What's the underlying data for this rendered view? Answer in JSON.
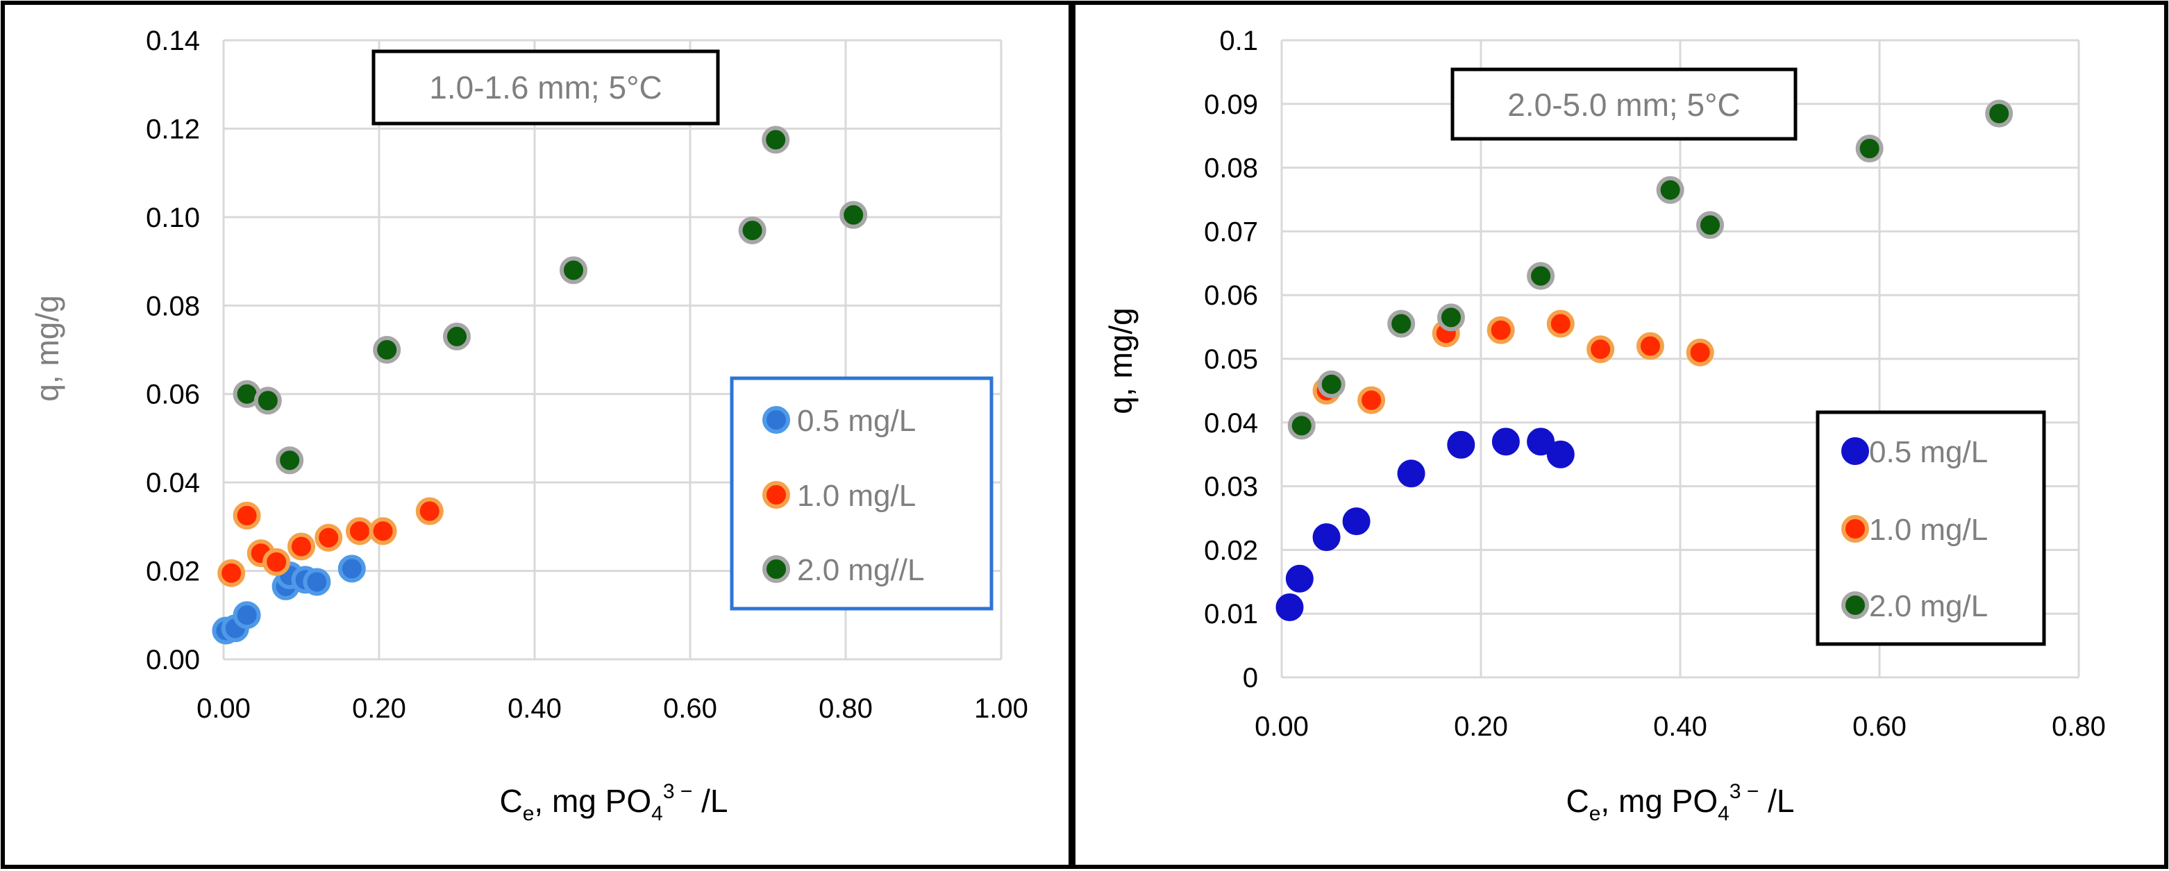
{
  "chart_data": [
    {
      "type": "scatter",
      "annotation": "1.0-1.6 mm; 5°C",
      "xlabel": {
        "main": "C",
        "sub": "e",
        "rest1": ", mg PO",
        "sub2": "4",
        "sup": "3 −",
        "rest2": " /L"
      },
      "ylabel": "q, mg/g",
      "xlim": [
        0,
        1.0
      ],
      "ylim": [
        0,
        0.14
      ],
      "xticks": [
        "0.00",
        "0.20",
        "0.40",
        "0.60",
        "0.80",
        "1.00"
      ],
      "yticks": [
        "0.00",
        "0.02",
        "0.04",
        "0.06",
        "0.08",
        "0.10",
        "0.12",
        "0.14"
      ],
      "grid": true,
      "legend_position": "right",
      "series": [
        {
          "name": "0.5 mg/L",
          "color": "#2e75d6",
          "edge": "#4f9ae8",
          "x": [
            0.003,
            0.015,
            0.03,
            0.08,
            0.085,
            0.105,
            0.12,
            0.165
          ],
          "y": [
            0.0065,
            0.007,
            0.01,
            0.0165,
            0.019,
            0.018,
            0.0175,
            0.0205
          ]
        },
        {
          "name": "1.0 mg/L",
          "color": "#ff2a00",
          "edge": "#f5a24b",
          "x": [
            0.01,
            0.03,
            0.048,
            0.068,
            0.1,
            0.135,
            0.175,
            0.205,
            0.265
          ],
          "y": [
            0.0195,
            0.0325,
            0.024,
            0.022,
            0.0255,
            0.0275,
            0.029,
            0.029,
            0.0335
          ]
        },
        {
          "name": "2.0 mg//L",
          "color": "#0b5c0b",
          "edge": "#a6a6a6",
          "x": [
            0.03,
            0.057,
            0.085,
            0.21,
            0.3,
            0.45,
            0.68,
            0.71,
            0.81
          ],
          "y": [
            0.06,
            0.0585,
            0.045,
            0.07,
            0.073,
            0.088,
            0.097,
            0.1175,
            0.1005
          ]
        }
      ]
    },
    {
      "type": "scatter",
      "annotation": "2.0-5.0 mm; 5°C",
      "xlabel": {
        "main": "C",
        "sub": "e",
        "rest1": ", mg PO",
        "sub2": "4",
        "sup": "3 −",
        "rest2": " /L"
      },
      "ylabel": "q, mg/g",
      "xlim": [
        0,
        0.8
      ],
      "ylim": [
        0,
        0.1
      ],
      "xticks": [
        "0.00",
        "0.20",
        "0.40",
        "0.60",
        "0.80"
      ],
      "yticks": [
        "0",
        "0.01",
        "0.02",
        "0.03",
        "0.04",
        "0.05",
        "0.06",
        "0.07",
        "0.08",
        "0.09",
        "0.1"
      ],
      "grid": true,
      "legend_position": "bottom-right",
      "series": [
        {
          "name": "0.5 mg/L",
          "color": "#1111cc",
          "edge": "#1111cc",
          "x": [
            0.008,
            0.018,
            0.045,
            0.075,
            0.13,
            0.18,
            0.225,
            0.26,
            0.28
          ],
          "y": [
            0.011,
            0.0155,
            0.022,
            0.0245,
            0.032,
            0.0365,
            0.037,
            0.037,
            0.035
          ]
        },
        {
          "name": "1.0 mg/L",
          "color": "#ff2a00",
          "edge": "#f5a24b",
          "x": [
            0.045,
            0.09,
            0.165,
            0.22,
            0.28,
            0.32,
            0.37,
            0.42
          ],
          "y": [
            0.045,
            0.0435,
            0.054,
            0.0545,
            0.0555,
            0.0515,
            0.052,
            0.051
          ]
        },
        {
          "name": "2.0 mg/L",
          "color": "#0b5c0b",
          "edge": "#a6a6a6",
          "x": [
            0.02,
            0.05,
            0.12,
            0.17,
            0.26,
            0.39,
            0.43,
            0.59,
            0.72
          ],
          "y": [
            0.0395,
            0.046,
            0.0555,
            0.0565,
            0.063,
            0.0765,
            0.071,
            0.083,
            0.0885
          ]
        }
      ]
    }
  ]
}
